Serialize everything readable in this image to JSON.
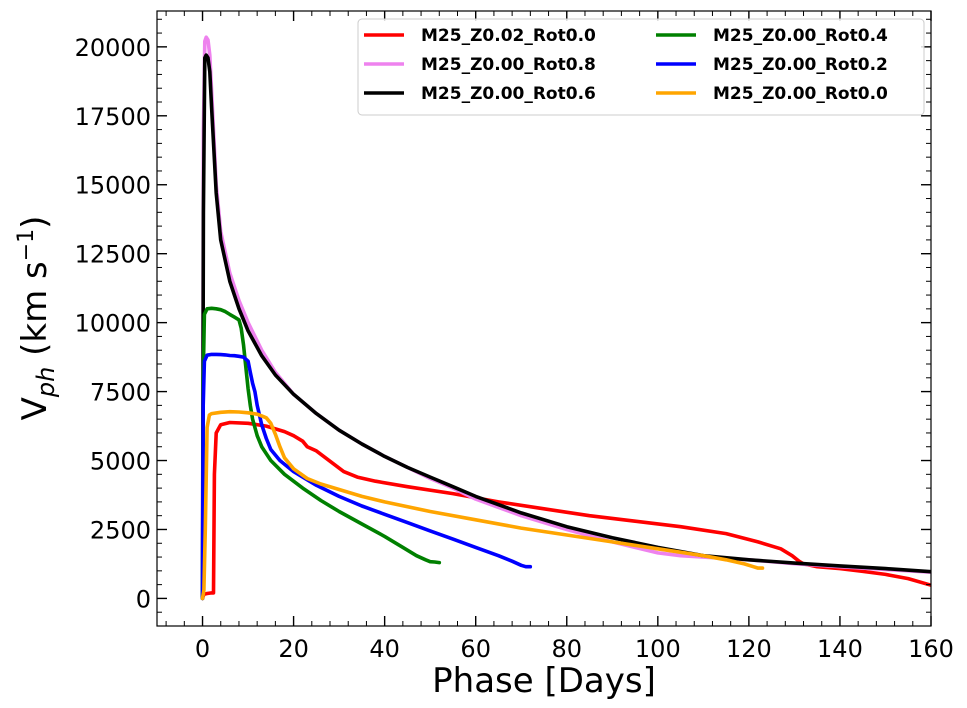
{
  "chart_data": {
    "type": "line",
    "title": "",
    "xlabel": "Phase [Days]",
    "ylabel_main": "V",
    "ylabel_sub": "ph",
    "ylabel_unit": " (km s",
    "ylabel_sup": "−1",
    "ylabel_close": ")",
    "xlim": [
      -10,
      160
    ],
    "ylim": [
      -1000,
      21300
    ],
    "xticks": [
      0,
      20,
      40,
      60,
      80,
      100,
      120,
      140,
      160
    ],
    "yticks": [
      0,
      2500,
      5000,
      7500,
      10000,
      12500,
      15000,
      17500,
      20000
    ],
    "x_minor_step": 4,
    "y_minor_step": 500,
    "grid": false,
    "legend_position": "top-right",
    "legend_columns": 2,
    "series": [
      {
        "name": "M25_Z0.02_Rot0.0",
        "color": "#ff0000",
        "x": [
          0,
          0.3,
          1,
          2,
          2.4,
          2.6,
          3,
          4,
          6,
          10,
          14,
          18,
          20,
          22,
          23,
          25,
          27,
          29,
          31,
          34,
          38,
          45,
          55,
          65,
          75,
          85,
          95,
          105,
          115,
          122,
          127,
          129.5,
          131,
          132,
          135,
          140,
          145,
          150,
          155,
          160
        ],
        "y": [
          0,
          150,
          180,
          200,
          200,
          4500,
          6000,
          6300,
          6380,
          6350,
          6250,
          6050,
          5900,
          5700,
          5500,
          5350,
          5100,
          4850,
          4600,
          4400,
          4250,
          4050,
          3800,
          3500,
          3250,
          3000,
          2800,
          2600,
          2350,
          2050,
          1800,
          1550,
          1350,
          1250,
          1150,
          1080,
          980,
          870,
          720,
          480
        ]
      },
      {
        "name": "M25_Z0.00_Rot0.8",
        "color": "#ee82ee",
        "x": [
          0,
          0.2,
          0.5,
          0.8,
          1.2,
          1.6,
          2,
          3,
          4,
          6,
          8,
          10,
          13,
          16,
          20,
          25,
          30,
          35,
          40,
          45,
          50,
          55,
          60,
          70,
          80,
          90,
          100,
          105,
          110,
          115,
          120,
          125,
          130,
          140,
          150,
          160
        ],
        "y": [
          0,
          17000,
          20200,
          20350,
          20250,
          19700,
          18400,
          15000,
          13300,
          11800,
          10800,
          10000,
          9000,
          8200,
          7400,
          6700,
          6100,
          5600,
          5150,
          4750,
          4350,
          4000,
          3600,
          3000,
          2500,
          2050,
          1650,
          1550,
          1500,
          1450,
          1400,
          1330,
          1260,
          1150,
          1050,
          950
        ]
      },
      {
        "name": "M25_Z0.00_Rot0.6",
        "color": "#000000",
        "x": [
          0,
          0.2,
          0.5,
          0.8,
          1.2,
          1.6,
          2,
          3,
          4,
          6,
          8,
          10,
          13,
          16,
          20,
          25,
          30,
          35,
          40,
          45,
          50,
          55,
          60,
          70,
          80,
          90,
          100,
          110,
          120,
          130,
          140,
          150,
          160
        ],
        "y": [
          0,
          14000,
          19600,
          19700,
          19600,
          19100,
          17800,
          14700,
          13000,
          11500,
          10500,
          9700,
          8800,
          8100,
          7400,
          6700,
          6100,
          5600,
          5150,
          4750,
          4400,
          4050,
          3700,
          3100,
          2600,
          2200,
          1850,
          1550,
          1400,
          1280,
          1180,
          1080,
          970
        ]
      },
      {
        "name": "M25_Z0.00_Rot0.4",
        "color": "#008000",
        "x": [
          0,
          0.15,
          0.4,
          1,
          2,
          3,
          4,
          5,
          6,
          7,
          8,
          8.5,
          9,
          9.5,
          10,
          10.5,
          11,
          12,
          13,
          15,
          18,
          22,
          26,
          30,
          35,
          40,
          44,
          47,
          49,
          50,
          51,
          52
        ],
        "y": [
          0,
          8000,
          10300,
          10500,
          10520,
          10500,
          10470,
          10400,
          10300,
          10200,
          10100,
          9800,
          9200,
          8400,
          7600,
          7000,
          6500,
          5900,
          5500,
          5000,
          4500,
          4000,
          3550,
          3150,
          2700,
          2250,
          1850,
          1550,
          1400,
          1330,
          1320,
          1300
        ]
      },
      {
        "name": "M25_Z0.00_Rot0.2",
        "color": "#0000ff",
        "x": [
          0,
          0.15,
          0.4,
          1,
          2,
          3,
          4,
          5,
          6,
          7,
          8,
          9,
          10,
          10.5,
          11,
          11.5,
          12,
          13,
          14,
          15,
          17,
          20,
          25,
          30,
          35,
          40,
          45,
          50,
          55,
          60,
          65,
          68,
          70,
          71,
          72
        ],
        "y": [
          0,
          7000,
          8600,
          8820,
          8850,
          8850,
          8840,
          8830,
          8810,
          8800,
          8780,
          8750,
          8600,
          8200,
          7800,
          7500,
          7000,
          6300,
          5800,
          5400,
          5000,
          4600,
          4100,
          3700,
          3350,
          3050,
          2750,
          2450,
          2150,
          1850,
          1550,
          1350,
          1200,
          1150,
          1150
        ]
      },
      {
        "name": "M25_Z0.00_Rot0.0",
        "color": "#ffa500",
        "x": [
          0,
          0.3,
          0.6,
          1,
          1.5,
          2,
          4,
          6,
          8,
          10,
          12,
          13,
          14,
          15,
          16,
          17,
          18,
          20,
          23,
          26,
          30,
          35,
          40,
          50,
          60,
          70,
          80,
          90,
          100,
          110,
          115,
          119,
          121,
          122,
          123
        ],
        "y": [
          0,
          300,
          2500,
          6200,
          6650,
          6700,
          6750,
          6770,
          6760,
          6730,
          6680,
          6620,
          6550,
          6350,
          5950,
          5500,
          5100,
          4700,
          4350,
          4150,
          3950,
          3700,
          3500,
          3150,
          2850,
          2550,
          2300,
          2050,
          1800,
          1550,
          1400,
          1250,
          1150,
          1100,
          1100
        ]
      }
    ]
  }
}
